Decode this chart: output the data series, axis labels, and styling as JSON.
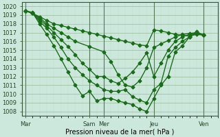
{
  "xlabel": "Pression niveau de la mer( hPa )",
  "bg_color": "#cce8dc",
  "line_color": "#1a6b1a",
  "grid_major_color": "#99bb99",
  "grid_minor_color": "#bbddbb",
  "ylim": [
    1007.5,
    1020.5
  ],
  "yticks": [
    1008,
    1009,
    1010,
    1011,
    1012,
    1013,
    1014,
    1015,
    1016,
    1017,
    1018,
    1019,
    1020
  ],
  "xtick_labels": [
    "Mar",
    "Sam",
    "Mer",
    "Jeu",
    "Ven"
  ],
  "xtick_positions": [
    0,
    9,
    11,
    18,
    25
  ],
  "xlim": [
    -0.5,
    27
  ],
  "vline_positions": [
    0,
    9,
    11,
    18,
    25
  ],
  "lines": [
    {
      "x": [
        0,
        1,
        2,
        3,
        4,
        5,
        6,
        7,
        8,
        9,
        10,
        11,
        12,
        13,
        14,
        15,
        16,
        17,
        18,
        19,
        20,
        21,
        22,
        23,
        24,
        25
      ],
      "y": [
        1019.5,
        1019.2,
        1018.8,
        1018.4,
        1018.0,
        1017.8,
        1017.6,
        1017.4,
        1017.2,
        1017.0,
        1016.8,
        1016.6,
        1016.4,
        1016.2,
        1016.0,
        1015.8,
        1015.6,
        1015.5,
        1017.3,
        1017.2,
        1017.0,
        1016.8,
        1016.7,
        1016.6,
        1016.8,
        1016.7
      ]
    },
    {
      "x": [
        0,
        1,
        2,
        3,
        4,
        5,
        6,
        7,
        9,
        11,
        12,
        13,
        14,
        15,
        16,
        17,
        18,
        19,
        20,
        21,
        22,
        23,
        24,
        25
      ],
      "y": [
        1019.5,
        1019.2,
        1018.7,
        1018.0,
        1017.5,
        1017.0,
        1016.5,
        1016.0,
        1015.4,
        1014.8,
        1013.7,
        1012.2,
        1011.0,
        1010.8,
        1011.5,
        1013.0,
        1015.3,
        1015.7,
        1016.1,
        1016.5,
        1016.8,
        1016.9,
        1017.0,
        1016.7
      ]
    },
    {
      "x": [
        0,
        1,
        2,
        3,
        4,
        5,
        6,
        7,
        8,
        9,
        10,
        11,
        12,
        13,
        14,
        15,
        16,
        17,
        18,
        19,
        20,
        21,
        22,
        23,
        24,
        25
      ],
      "y": [
        1019.5,
        1019.2,
        1018.5,
        1017.8,
        1017.0,
        1016.2,
        1015.4,
        1014.5,
        1013.5,
        1012.8,
        1012.0,
        1012.0,
        1011.5,
        1011.2,
        1011.8,
        1012.5,
        1013.5,
        1014.7,
        1012.0,
        1013.5,
        1015.0,
        1016.0,
        1016.5,
        1016.8,
        1017.0,
        1016.7
      ]
    },
    {
      "x": [
        0,
        1,
        2,
        3,
        4,
        5,
        6,
        7,
        8,
        9,
        10,
        11,
        12,
        13,
        14,
        15,
        16,
        17,
        18,
        19,
        20,
        21,
        22,
        23,
        24,
        25
      ],
      "y": [
        1019.5,
        1019.2,
        1018.3,
        1017.5,
        1016.5,
        1015.3,
        1014.0,
        1013.0,
        1012.2,
        1011.5,
        1011.0,
        1010.5,
        1010.3,
        1010.3,
        1010.5,
        1009.7,
        1009.3,
        1009.0,
        1010.5,
        1011.2,
        1014.3,
        1015.3,
        1016.0,
        1016.5,
        1017.0,
        1016.7
      ]
    },
    {
      "x": [
        0,
        1,
        2,
        3,
        4,
        5,
        6,
        7,
        8,
        9,
        10,
        11,
        12,
        13,
        14,
        15,
        16,
        17,
        18,
        19,
        20,
        21,
        22,
        23,
        24,
        25
      ],
      "y": [
        1019.5,
        1019.3,
        1018.0,
        1016.8,
        1015.5,
        1014.0,
        1012.5,
        1011.0,
        1009.8,
        1010.3,
        1009.2,
        1009.5,
        1009.5,
        1009.2,
        1009.0,
        1008.8,
        1008.3,
        1008.0,
        1009.5,
        1011.0,
        1012.0,
        1014.8,
        1015.5,
        1016.5,
        1017.1,
        1016.7
      ]
    }
  ],
  "marker": "D",
  "markersize": 2.5,
  "linewidth": 1.0,
  "ytick_fontsize": 5.5,
  "xtick_fontsize": 6,
  "xlabel_fontsize": 7
}
